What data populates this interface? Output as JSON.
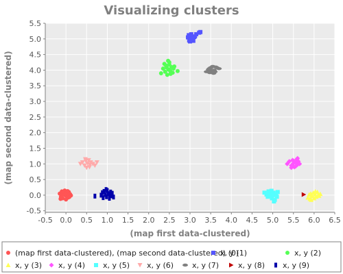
{
  "chart_data": {
    "type": "scatter",
    "title": "Visualizing clusters",
    "xlabel": "(map first data-clustered)",
    "ylabel": "(map second data-clustered)",
    "xlim": [
      -0.5,
      6.5
    ],
    "ylim": [
      -0.55,
      5.5
    ],
    "xticks": [
      "-0.5",
      "0.0",
      "0.5",
      "1.0",
      "1.5",
      "2.0",
      "2.5",
      "3.0",
      "3.5",
      "4.0",
      "4.5",
      "5.0",
      "5.5",
      "6.0",
      "6.5"
    ],
    "yticks": [
      "-0.5",
      "0.0",
      "0.5",
      "1.0",
      "1.5",
      "2.0",
      "2.5",
      "3.0",
      "3.5",
      "4.0",
      "4.5",
      "5.0",
      "5.5"
    ],
    "grid": true,
    "legend_position": "bottom",
    "series": [
      {
        "name": "(map first data-clustered), (map second data-clustered) (0)",
        "color": "#ff5555",
        "marker": "circle",
        "x": [
          -0.15,
          -0.12,
          -0.1,
          -0.08,
          -0.05,
          -0.03,
          0.0,
          0.02,
          0.05,
          0.07,
          0.1,
          -0.13,
          -0.07,
          0.0,
          0.06,
          -0.02,
          0.04,
          0.08,
          -0.1,
          0.12
        ],
        "y": [
          0.05,
          -0.05,
          0.12,
          -0.1,
          0.02,
          0.15,
          -0.02,
          0.08,
          -0.08,
          0.1,
          0.03,
          -0.12,
          0.07,
          -0.14,
          -0.03,
          0.04,
          0.13,
          -0.06,
          0.0,
          -0.01
        ]
      },
      {
        "name": "x, y (1)",
        "color": "#5555ff",
        "marker": "square",
        "x": [
          2.95,
          2.98,
          3.0,
          3.02,
          3.05,
          3.08,
          3.1,
          2.97,
          3.03,
          3.07,
          3.12,
          3.15,
          3.22,
          3.25,
          3.0,
          3.05
        ],
        "y": [
          5.05,
          4.95,
          5.1,
          4.98,
          5.02,
          4.94,
          5.06,
          5.12,
          5.15,
          4.97,
          5.08,
          5.15,
          5.2,
          5.22,
          4.92,
          5.0
        ]
      },
      {
        "name": "x, y (2)",
        "color": "#55ff55",
        "marker": "circle",
        "x": [
          2.3,
          2.35,
          2.4,
          2.42,
          2.45,
          2.48,
          2.5,
          2.52,
          2.55,
          2.58,
          2.6,
          2.38,
          2.47,
          2.53,
          2.62,
          2.7,
          2.44,
          2.5
        ],
        "y": [
          3.9,
          4.05,
          3.95,
          4.15,
          3.85,
          4.02,
          4.25,
          3.98,
          4.1,
          3.92,
          4.05,
          4.2,
          4.3,
          3.88,
          4.12,
          3.97,
          4.08,
          4.18
        ]
      },
      {
        "name": "x, y (3)",
        "color": "#ffff55",
        "marker": "triangle-up",
        "x": [
          5.85,
          5.88,
          5.9,
          5.92,
          5.95,
          5.98,
          6.0,
          6.02,
          6.05,
          6.08,
          6.1,
          6.15,
          5.93,
          6.03,
          6.12
        ],
        "y": [
          -0.08,
          0.02,
          -0.12,
          0.05,
          -0.03,
          0.08,
          -0.1,
          0.03,
          -0.05,
          0.1,
          0.0,
          0.04,
          -0.15,
          0.12,
          -0.02
        ]
      },
      {
        "name": "x, y (4)",
        "color": "#ff55ff",
        "marker": "diamond",
        "x": [
          5.35,
          5.4,
          5.45,
          5.48,
          5.5,
          5.52,
          5.55,
          5.58,
          5.6,
          5.62,
          5.65,
          5.45,
          5.55,
          5.6,
          5.5
        ],
        "y": [
          1.0,
          1.08,
          0.95,
          1.12,
          1.02,
          0.9,
          1.05,
          1.15,
          0.98,
          1.08,
          1.0,
          0.88,
          0.92,
          1.18,
          1.1
        ]
      },
      {
        "name": "x, y (5)",
        "color": "#55ffff",
        "marker": "square",
        "x": [
          4.8,
          4.85,
          4.88,
          4.9,
          4.95,
          4.98,
          5.0,
          5.02,
          5.05,
          5.08,
          5.1,
          5.12,
          4.92,
          5.03,
          4.97
        ],
        "y": [
          0.08,
          0.02,
          -0.05,
          0.12,
          0.05,
          -0.1,
          0.0,
          0.08,
          -0.15,
          0.03,
          -0.05,
          0.1,
          -0.02,
          -0.2,
          0.14
        ]
      },
      {
        "name": "x, y (6)",
        "color": "#ffaaaa",
        "marker": "triangle-down",
        "x": [
          0.35,
          0.4,
          0.45,
          0.48,
          0.5,
          0.52,
          0.55,
          0.58,
          0.6,
          0.65,
          0.7,
          0.75,
          0.47,
          0.57
        ],
        "y": [
          1.0,
          1.05,
          0.95,
          1.1,
          0.88,
          1.02,
          1.12,
          0.97,
          1.05,
          1.0,
          0.95,
          1.05,
          1.15,
          0.9
        ]
      },
      {
        "name": "x, y (7)",
        "color": "#808080",
        "marker": "ellipse",
        "x": [
          3.4,
          3.45,
          3.48,
          3.5,
          3.52,
          3.55,
          3.58,
          3.6,
          3.65,
          3.7,
          3.47,
          3.57,
          3.62
        ],
        "y": [
          3.95,
          4.02,
          3.92,
          4.08,
          3.98,
          4.12,
          4.0,
          3.95,
          4.08,
          4.05,
          4.05,
          3.9,
          4.1
        ]
      },
      {
        "name": "x, y (8)",
        "color": "#c00000",
        "marker": "triangle-right",
        "x": [
          5.75
        ],
        "y": [
          0.02
        ]
      },
      {
        "name": "x, y (9)",
        "color": "#0000aa",
        "marker": "rect-vertical",
        "x": [
          0.85,
          0.88,
          0.9,
          0.92,
          0.95,
          0.98,
          1.0,
          1.02,
          1.05,
          1.08,
          1.1,
          1.12,
          1.15,
          0.7,
          0.97,
          1.07
        ],
        "y": [
          0.0,
          0.08,
          -0.08,
          0.12,
          0.02,
          -0.05,
          0.15,
          0.05,
          -0.1,
          0.1,
          -0.02,
          0.06,
          -0.06,
          -0.03,
          0.18,
          0.0
        ]
      }
    ]
  }
}
